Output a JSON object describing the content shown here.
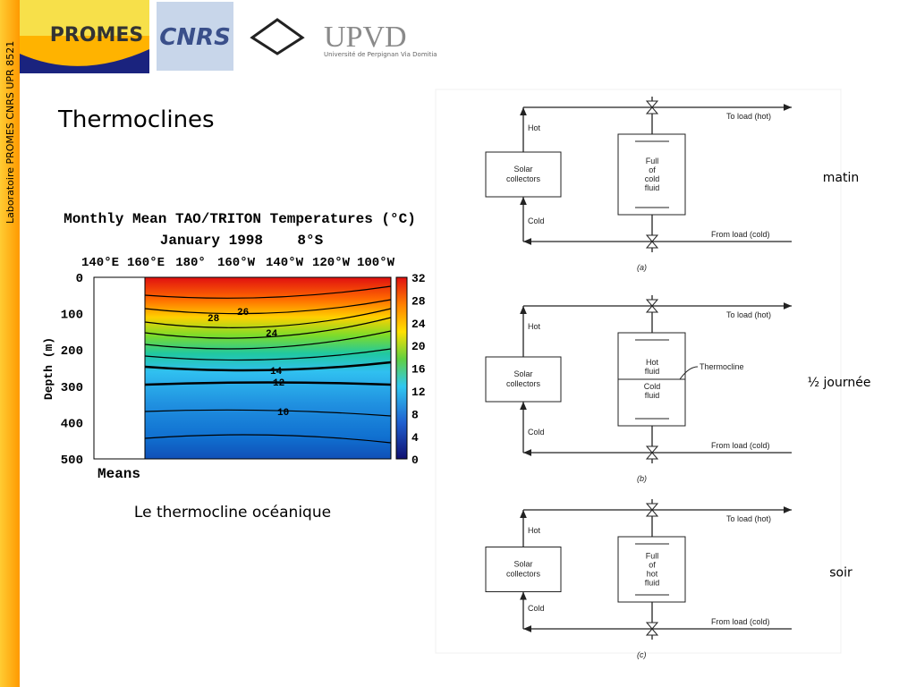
{
  "sidebar": "Laboratoire PROMES CNRS UPR 8521",
  "logos": {
    "promes": "PROMES",
    "cnrs": "CNRS",
    "upvd": "UPVD",
    "upvd_sub": "Université de Perpignan Via Domitia"
  },
  "title": "Thermoclines",
  "ocean_figure": {
    "title": "Monthly Mean TAO/TRITON Temperatures (°C)",
    "subtitle": "January 1998    8°S",
    "longitudes": [
      "140°E",
      "160°E",
      "180°",
      "160°W",
      "140°W",
      "120°W",
      "100°W"
    ],
    "depth_label": "Depth (m)",
    "depth_ticks": [
      "0",
      "100",
      "200",
      "300",
      "400",
      "500"
    ],
    "colorbar_ticks": [
      "32",
      "28",
      "24",
      "20",
      "16",
      "12",
      "8",
      "4",
      "0"
    ],
    "contour_labels": [
      "26",
      "28",
      "24",
      "14",
      "12",
      "10"
    ],
    "means": "Means"
  },
  "caption": "Le thermocline océanique",
  "diagrams": [
    {
      "hot": "Hot",
      "cold": "Cold",
      "collectors": [
        "Solar",
        "collectors"
      ],
      "tank": [
        "Full",
        "of",
        "cold",
        "fluid"
      ],
      "to_load": "To load (hot)",
      "from_load": "From load (cold)",
      "panel": "(a)",
      "state": "matin"
    },
    {
      "hot": "Hot",
      "cold": "Cold",
      "collectors": [
        "Solar",
        "collectors"
      ],
      "tank_top": [
        "Hot",
        "fluid"
      ],
      "tank_bottom": [
        "Cold",
        "fluid"
      ],
      "thermocline": "Thermocline",
      "to_load": "To load (hot)",
      "from_load": "From load (cold)",
      "panel": "(b)",
      "state": "½ journée"
    },
    {
      "hot": "Hot",
      "cold": "Cold",
      "collectors": [
        "Solar",
        "collectors"
      ],
      "tank": [
        "Full",
        "of",
        "hot",
        "fluid"
      ],
      "to_load": "To load (hot)",
      "from_load": "From load (cold)",
      "panel": "(c)",
      "state": "soir"
    }
  ]
}
